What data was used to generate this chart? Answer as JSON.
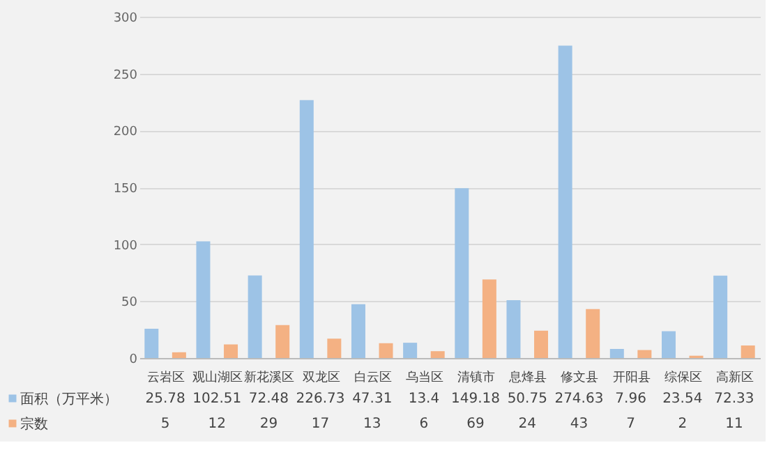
{
  "chart_data": {
    "type": "bar",
    "categories": [
      "云岩区",
      "观山湖区",
      "新花溪区",
      "双龙区",
      "白云区",
      "乌当区",
      "清镇市",
      "息烽县",
      "修文县",
      "开阳县",
      "综保区",
      "高新区"
    ],
    "series": [
      {
        "name": "面积（万平米）",
        "color": "#9dc3e6",
        "values": [
          25.78,
          102.51,
          72.48,
          226.73,
          47.31,
          13.4,
          149.18,
          50.75,
          274.63,
          7.96,
          23.54,
          72.33
        ]
      },
      {
        "name": "宗数",
        "color": "#f4b183",
        "values": [
          5,
          12,
          29,
          17,
          13,
          6,
          69,
          24,
          43,
          7,
          2,
          11
        ]
      }
    ],
    "ylim": [
      0,
      300
    ],
    "yticks": [
      0,
      50,
      100,
      150,
      200,
      250,
      300
    ],
    "grid": "y",
    "data_labels": true,
    "legend": "bottom"
  }
}
